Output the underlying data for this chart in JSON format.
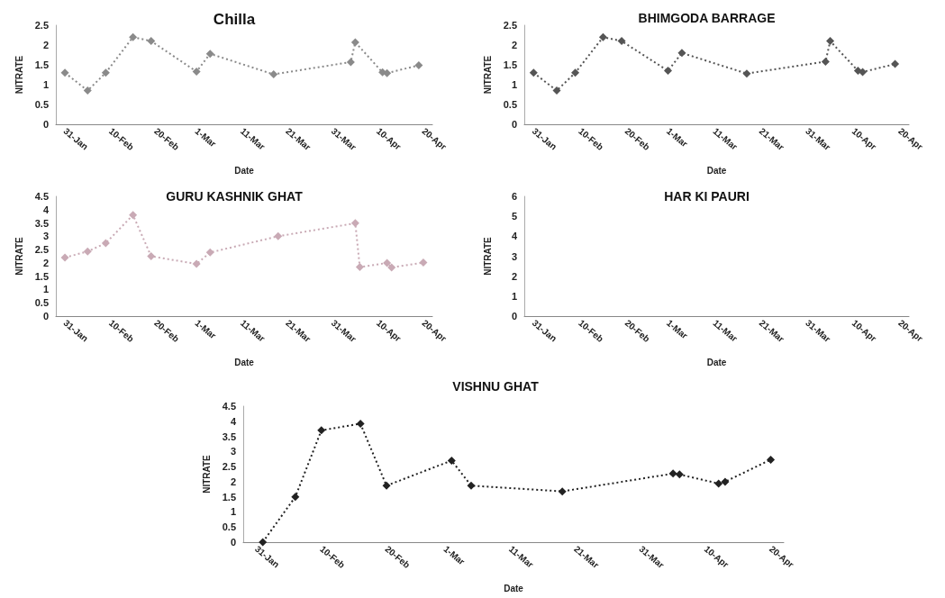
{
  "chart_data": [
    {
      "type": "line",
      "title": "Chilla",
      "xlabel": "Date",
      "ylabel": "NITRATE",
      "marker": "diamond",
      "line_style": "dotted",
      "grid": false,
      "x": [
        "--01-31",
        "--02-05",
        "--02-09",
        "--02-15",
        "--02-19",
        "--03-01",
        "--03-04",
        "--03-18",
        "--04-04",
        "--04-05",
        "--04-11",
        "--04-12",
        "--04-19"
      ],
      "series": [
        {
          "color": "#8a8a8a",
          "values": [
            1.3,
            0.85,
            1.3,
            2.2,
            2.1,
            1.33,
            1.78,
            1.26,
            1.57,
            2.07,
            1.31,
            1.29,
            1.49
          ]
        }
      ],
      "xlim": [
        "--01-29",
        "--04-22"
      ],
      "xticks": [
        {
          "value": "--01-31",
          "label": "31-Jan"
        },
        {
          "value": "--02-10",
          "label": "10-Feb"
        },
        {
          "value": "--02-20",
          "label": "20-Feb"
        },
        {
          "value": "--03-01",
          "label": "1-Mar"
        },
        {
          "value": "--03-11",
          "label": "11-Mar"
        },
        {
          "value": "--03-21",
          "label": "21-Mar"
        },
        {
          "value": "--03-31",
          "label": "31-Mar"
        },
        {
          "value": "--04-10",
          "label": "10-Apr"
        },
        {
          "value": "--04-20",
          "label": "20-Apr"
        }
      ],
      "ylim": [
        0,
        2.5
      ],
      "yticks": [
        0,
        0.5,
        1,
        1.5,
        2,
        2.5
      ]
    },
    {
      "type": "line",
      "title": "BHIMGODA BARRAGE",
      "xlabel": "Date",
      "ylabel": "NITRATE",
      "marker": "diamond",
      "line_style": "dotted",
      "grid": false,
      "x": [
        "--01-31",
        "--02-05",
        "--02-09",
        "--02-15",
        "--02-19",
        "--03-01",
        "--03-04",
        "--03-18",
        "--04-04",
        "--04-05",
        "--04-11",
        "--04-12",
        "--04-19"
      ],
      "series": [
        {
          "color": "#555555",
          "values": [
            1.3,
            0.85,
            1.3,
            2.2,
            2.1,
            1.35,
            1.8,
            1.28,
            1.58,
            2.1,
            1.35,
            1.32,
            1.52
          ]
        }
      ],
      "xlim": [
        "--01-29",
        "--04-22"
      ],
      "xticks": [
        {
          "value": "--01-31",
          "label": "31-Jan"
        },
        {
          "value": "--02-10",
          "label": "10-Feb"
        },
        {
          "value": "--02-20",
          "label": "20-Feb"
        },
        {
          "value": "--03-01",
          "label": "1-Mar"
        },
        {
          "value": "--03-11",
          "label": "11-Mar"
        },
        {
          "value": "--03-21",
          "label": "21-Mar"
        },
        {
          "value": "--03-31",
          "label": "31-Mar"
        },
        {
          "value": "--04-10",
          "label": "10-Apr"
        },
        {
          "value": "--04-20",
          "label": "20-Apr"
        }
      ],
      "ylim": [
        0,
        2.5
      ],
      "yticks": [
        0,
        0.5,
        1,
        1.5,
        2,
        2.5
      ]
    },
    {
      "type": "line",
      "title": "GURU KASHNIK GHAT",
      "xlabel": "Date",
      "ylabel": "NITRATE",
      "marker": "diamond",
      "line_style": "dotted",
      "grid": false,
      "x": [
        "--01-31",
        "--02-05",
        "--02-09",
        "--02-15",
        "--02-19",
        "--03-01",
        "--03-04",
        "--03-19",
        "--04-05",
        "--04-06",
        "--04-12",
        "--04-13",
        "--04-20"
      ],
      "series": [
        {
          "color": "#c9aab5",
          "values": [
            2.2,
            2.43,
            2.74,
            3.8,
            2.25,
            1.96,
            2.39,
            3.0,
            3.49,
            1.84,
            2.0,
            1.83,
            2.01
          ]
        }
      ],
      "xlim": [
        "--01-29",
        "--04-22"
      ],
      "xticks": [
        {
          "value": "--01-31",
          "label": "31-Jan"
        },
        {
          "value": "--02-10",
          "label": "10-Feb"
        },
        {
          "value": "--02-20",
          "label": "20-Feb"
        },
        {
          "value": "--03-01",
          "label": "1-Mar"
        },
        {
          "value": "--03-11",
          "label": "11-Mar"
        },
        {
          "value": "--03-21",
          "label": "21-Mar"
        },
        {
          "value": "--03-31",
          "label": "31-Mar"
        },
        {
          "value": "--04-10",
          "label": "10-Apr"
        },
        {
          "value": "--04-20",
          "label": "20-Apr"
        }
      ],
      "ylim": [
        0,
        4.5
      ],
      "yticks": [
        0,
        0.5,
        1,
        1.5,
        2,
        2.5,
        3,
        3.5,
        4,
        4.5
      ]
    },
    {
      "type": "line",
      "title": "HAR KI PAURI",
      "xlabel": "Date",
      "ylabel": "NITRATE",
      "grid": false,
      "xlim": [
        "--01-29",
        "--04-22"
      ],
      "xticks": [
        {
          "value": "--01-31",
          "label": "31-Jan"
        },
        {
          "value": "--02-10",
          "label": "10-Feb"
        },
        {
          "value": "--02-20",
          "label": "20-Feb"
        },
        {
          "value": "--03-01",
          "label": "1-Mar"
        },
        {
          "value": "--03-11",
          "label": "11-Mar"
        },
        {
          "value": "--03-21",
          "label": "21-Mar"
        },
        {
          "value": "--03-31",
          "label": "31-Mar"
        },
        {
          "value": "--04-10",
          "label": "10-Apr"
        },
        {
          "value": "--04-20",
          "label": "20-Apr"
        }
      ],
      "ylim": [
        0,
        6
      ],
      "yticks": [
        0,
        1,
        2,
        3,
        4,
        5,
        6
      ]
    },
    {
      "type": "line",
      "title": "VISHNU GHAT",
      "xlabel": "Date",
      "ylabel": "NITRATE",
      "marker": "diamond",
      "line_style": "dotted",
      "grid": false,
      "x": [
        "--02-01",
        "--02-06",
        "--02-10",
        "--02-16",
        "--02-20",
        "--03-02",
        "--03-05",
        "--03-19",
        "--04-05",
        "--04-06",
        "--04-12",
        "--04-13",
        "--04-20"
      ],
      "series": [
        {
          "color": "#222222",
          "values": [
            0,
            1.5,
            3.7,
            3.92,
            1.87,
            2.7,
            1.87,
            1.68,
            2.27,
            2.24,
            1.94,
            2.0,
            2.73
          ]
        }
      ],
      "xlim": [
        "--01-29",
        "--04-22"
      ],
      "xticks": [
        {
          "value": "--01-31",
          "label": "31-Jan"
        },
        {
          "value": "--02-10",
          "label": "10-Feb"
        },
        {
          "value": "--02-20",
          "label": "20-Feb"
        },
        {
          "value": "--03-01",
          "label": "1-Mar"
        },
        {
          "value": "--03-11",
          "label": "11-Mar"
        },
        {
          "value": "--03-21",
          "label": "21-Mar"
        },
        {
          "value": "--03-31",
          "label": "31-Mar"
        },
        {
          "value": "--04-10",
          "label": "10-Apr"
        },
        {
          "value": "--04-20",
          "label": "20-Apr"
        }
      ],
      "ylim": [
        0,
        4.5
      ],
      "yticks": [
        0,
        0.5,
        1,
        1.5,
        2,
        2.5,
        3,
        3.5,
        4,
        4.5
      ]
    }
  ]
}
